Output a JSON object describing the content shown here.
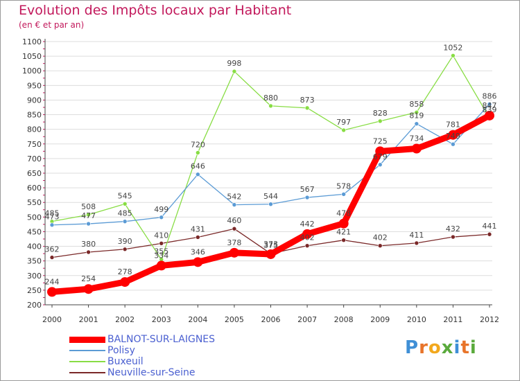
{
  "header": {
    "title": "Evolution des Impôts locaux par Habitant",
    "subtitle": "(en € et par an)"
  },
  "logo": {
    "text": "Proxiti"
  },
  "chart_data": {
    "type": "line",
    "title": "Evolution des Impôts locaux par Habitant",
    "subtitle": "(en € et par an)",
    "xlabel": "",
    "ylabel": "",
    "ylim": [
      200,
      1100
    ],
    "yticks": [
      200,
      250,
      300,
      350,
      400,
      450,
      500,
      550,
      600,
      650,
      700,
      750,
      800,
      850,
      900,
      950,
      1000,
      1050,
      1100
    ],
    "categories": [
      "2000",
      "2001",
      "2002",
      "2003",
      "2004",
      "2005",
      "2006",
      "2007",
      "2008",
      "2009",
      "2010",
      "2011",
      "2012"
    ],
    "grid": "horizontal",
    "legend_position": "bottom-left",
    "series": [
      {
        "name": "Neuville-sur-Seine",
        "color": "#7a2828",
        "values": [
          362,
          380,
          390,
          410,
          431,
          460,
          375,
          402,
          421,
          402,
          411,
          432,
          441
        ]
      },
      {
        "name": "Buxeuil",
        "color": "#88dd44",
        "values": [
          485,
          508,
          545,
          355,
          720,
          998,
          880,
          873,
          797,
          828,
          858,
          1052,
          839
        ]
      },
      {
        "name": "Polisy",
        "color": "#5b9bd5",
        "values": [
          473,
          477,
          485,
          499,
          646,
          542,
          544,
          567,
          578,
          679,
          819,
          749,
          886
        ]
      },
      {
        "name": "BALNOT-SUR-LAIGNES",
        "color": "#ff0000",
        "values": [
          244,
          254,
          278,
          334,
          346,
          378,
          373,
          442,
          478,
          725,
          734,
          781,
          847
        ]
      }
    ]
  },
  "legend": [
    {
      "name": "BALNOT-SUR-LAIGNES",
      "color": "#ff0000"
    },
    {
      "name": "Polisy",
      "color": "#5b9bd5"
    },
    {
      "name": "Buxeuil",
      "color": "#88dd44"
    },
    {
      "name": "Neuville-sur-Seine",
      "color": "#7a2828"
    }
  ]
}
